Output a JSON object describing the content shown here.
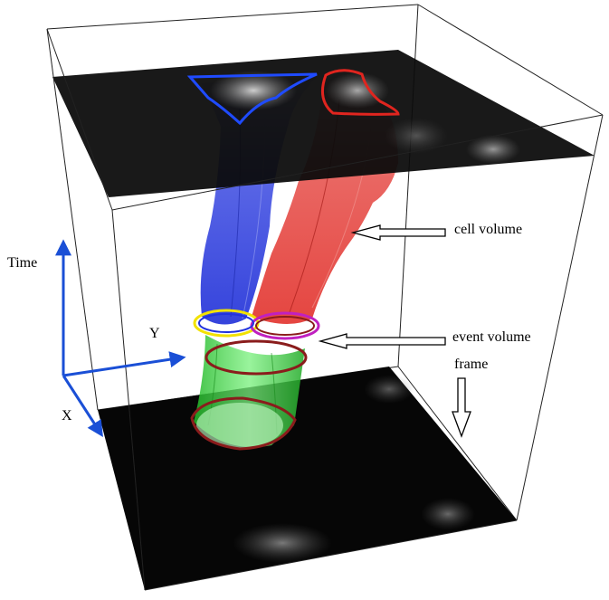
{
  "labels": {
    "time_axis": "Time",
    "y_axis": "Y",
    "x_axis": "X",
    "cell_volume": "cell volume",
    "event_volume": "event volume",
    "frame": "frame"
  },
  "colors": {
    "axis_blue": "#1a4fd6",
    "cell_blue": "#2233dd",
    "cell_red": "#e0251f",
    "event_green": "#2fd135",
    "ring_yellow": "#f2e200",
    "ring_magenta": "#c020c0",
    "ring_darkred": "#8a1c1c",
    "frame_black": "#050505"
  }
}
